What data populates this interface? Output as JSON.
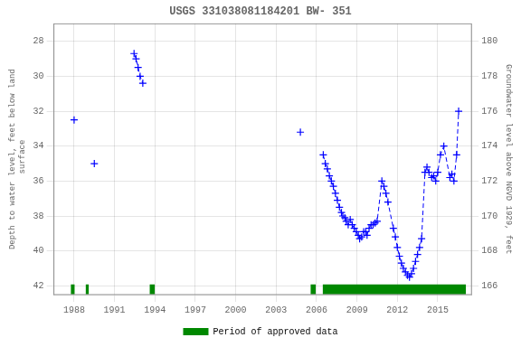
{
  "chart_data": {
    "type": "line",
    "title": "USGS 331038081184201 BW- 351",
    "ylabel": "Depth to water level, feet below land\n surface",
    "y2label": "Groundwater level above NGVD 1929, feet",
    "xlim": [
      1986.5,
      2017.5
    ],
    "xticks": [
      1988,
      1991,
      1994,
      1997,
      2000,
      2003,
      2006,
      2009,
      2012,
      2015
    ],
    "ylim": [
      42.5,
      27.0
    ],
    "yticks": [
      28,
      30,
      32,
      34,
      36,
      38,
      40,
      42
    ],
    "y2lim": [
      165.5,
      181.0
    ],
    "y2ticks": [
      180,
      178,
      176,
      174,
      172,
      170,
      168,
      166
    ],
    "grid": true,
    "legend": "bottom",
    "series": [
      {
        "color": "#0000ff",
        "marker": "+",
        "line_style": "dashed",
        "x": [
          1988.0
        ],
        "values": [
          32.5
        ]
      },
      {
        "color": "#0000ff",
        "marker": "+",
        "line_style": "dashed",
        "x": [
          1989.5
        ],
        "values": [
          35.0
        ]
      },
      {
        "color": "#0000ff",
        "marker": "+",
        "line_style": "dashed",
        "x": [
          1992.45,
          1992.6,
          1992.75,
          1992.9,
          1993.1
        ],
        "values": [
          28.7,
          29.0,
          29.5,
          30.0,
          30.4
        ]
      },
      {
        "color": "#0000ff",
        "marker": "+",
        "line_style": "dashed",
        "x": [
          2004.8
        ],
        "values": [
          33.2
        ]
      },
      {
        "color": "#0000ff",
        "marker": "+",
        "line_style": "dashed",
        "x": [
          2006.5,
          2006.65,
          2006.8,
          2006.95,
          2007.1,
          2007.25,
          2007.4,
          2007.55,
          2007.7,
          2007.85,
          2007.95,
          2008.1,
          2008.2,
          2008.35,
          2008.5,
          2008.65,
          2008.8,
          2008.95,
          2009.1,
          2009.2,
          2009.35,
          2009.5,
          2009.65,
          2009.75,
          2009.9,
          2010.05,
          2010.2,
          2010.35,
          2010.5,
          2010.85,
          2011.0,
          2011.15,
          2011.3,
          2011.7,
          2011.85,
          2012.0,
          2012.15,
          2012.3,
          2012.45,
          2012.6,
          2012.75,
          2012.9,
          2013.05,
          2013.2,
          2013.35,
          2013.5,
          2013.65,
          2013.8,
          2014.05,
          2014.2,
          2014.35,
          2014.55,
          2014.7,
          2014.85,
          2015.0,
          2015.2,
          2015.45,
          2015.9,
          2016.05,
          2016.2,
          2016.4,
          2016.55
        ],
        "values": [
          34.5,
          35.0,
          35.3,
          35.7,
          36.0,
          36.3,
          36.7,
          37.1,
          37.5,
          37.8,
          38.0,
          38.1,
          38.3,
          38.5,
          38.2,
          38.5,
          38.7,
          38.9,
          39.1,
          39.3,
          39.2,
          38.9,
          38.9,
          39.1,
          38.7,
          38.5,
          38.5,
          38.4,
          38.3,
          36.0,
          36.3,
          36.7,
          37.2,
          38.7,
          39.2,
          39.8,
          40.3,
          40.7,
          41.0,
          41.2,
          41.4,
          41.5,
          41.3,
          41.0,
          40.6,
          40.2,
          39.8,
          39.3,
          35.5,
          35.2,
          35.5,
          35.8,
          35.7,
          36.0,
          35.5,
          34.5,
          34.0,
          35.8,
          35.6,
          36.0,
          34.5,
          32.0
        ]
      },
      {
        "name": "Period of approved data",
        "type": "range",
        "color": "#008800",
        "ranges": [
          [
            1987.75,
            1988.05
          ],
          [
            1988.85,
            1989.1
          ],
          [
            1993.6,
            1994.0
          ],
          [
            2005.55,
            2005.95
          ],
          [
            2006.45,
            2017.1
          ]
        ],
        "y_center": 42.2,
        "half_height": 0.28
      }
    ]
  }
}
